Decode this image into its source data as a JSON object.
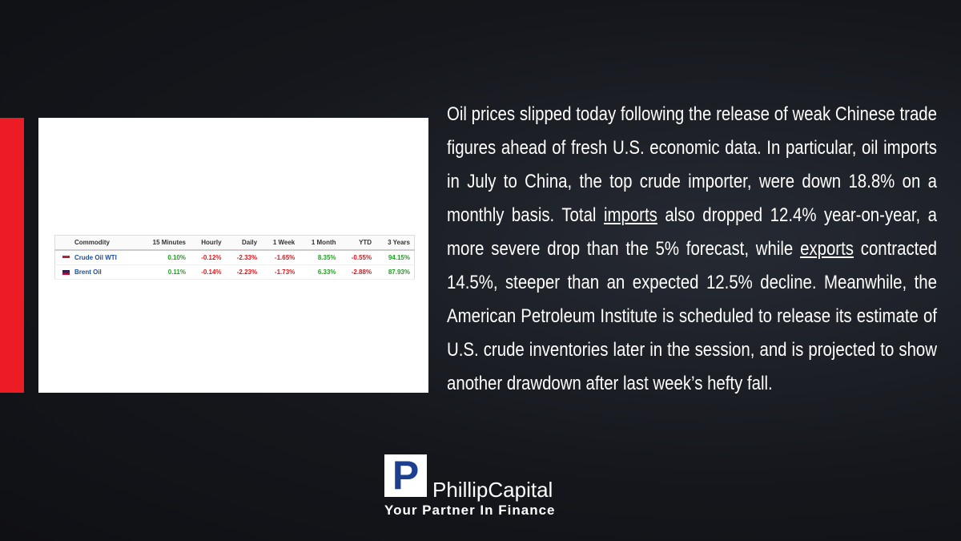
{
  "table": {
    "headers": [
      "Commodity",
      "15 Minutes",
      "Hourly",
      "Daily",
      "1 Week",
      "1 Month",
      "YTD",
      "3 Years"
    ],
    "rows": [
      [
        "Crude Oil WTI",
        "0.10%",
        "-0.12%",
        "-2.33%",
        "-1.65%",
        "8.35%",
        "-0.55%",
        "94.15%"
      ],
      [
        "Brent Oil",
        "0.11%",
        "-0.14%",
        "-2.23%",
        "-1.73%",
        "6.33%",
        "-2.88%",
        "87.93%"
      ]
    ]
  },
  "paragraph": {
    "segments": [
      {
        "text": "Oil prices slipped today following the release of weak Chinese trade figures ahead of fresh U.S. economic data. In particular, oil imports in July to China, the top crude importer, were down 18.8% on a monthly basis. Total "
      },
      {
        "text": "imports",
        "underline": true
      },
      {
        "text": " also dropped 12.4% year-on-year, a more severe drop than the 5% forecast, while "
      },
      {
        "text": "exports",
        "underline": true
      },
      {
        "text": " contracted 14.5%, steeper than an expected 12.5% decline. Meanwhile, the American Petroleum Institute is scheduled to release its estimate of U.S. crude inventories later in the session, and is projected to show another drawdown after last week’s hefty fall."
      }
    ]
  },
  "logo": {
    "icon": "P",
    "brand": "PhillipCapital",
    "tagline": "Your Partner In Finance"
  }
}
